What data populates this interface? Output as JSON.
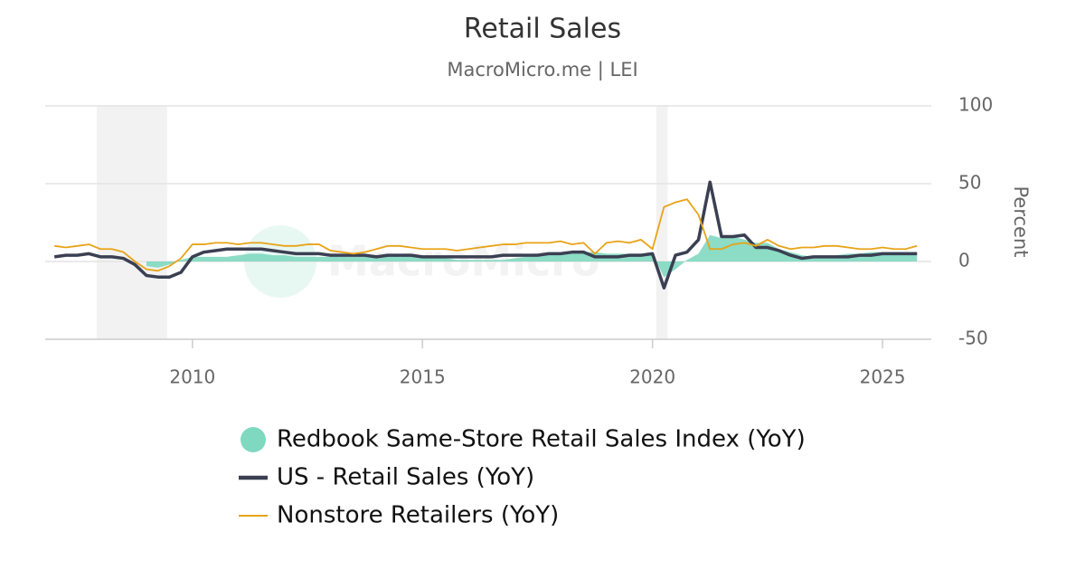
{
  "chart_data": {
    "type": "line",
    "title": "Retail Sales",
    "subtitle": "MacroMicro.me | LEI",
    "watermark": "MacroMicro",
    "y_label": "Percent",
    "xlim": [
      2006.8,
      2026.06
    ],
    "xticks": [
      2010,
      2015,
      2020,
      2025
    ],
    "ylim": [
      -50,
      100
    ],
    "yticks": [
      -50,
      0,
      50,
      100
    ],
    "grid": true,
    "shaded_periods": [
      [
        2007.92,
        2009.45
      ],
      [
        2020.08,
        2020.33
      ]
    ],
    "x": [
      2007,
      2007.25,
      2007.5,
      2007.75,
      2008,
      2008.25,
      2008.5,
      2008.75,
      2009,
      2009.25,
      2009.5,
      2009.75,
      2010,
      2010.25,
      2010.5,
      2010.75,
      2011,
      2011.25,
      2011.5,
      2011.75,
      2012,
      2012.25,
      2012.5,
      2012.75,
      2013,
      2013.25,
      2013.5,
      2013.75,
      2014,
      2014.25,
      2014.5,
      2014.75,
      2015,
      2015.25,
      2015.5,
      2015.75,
      2016,
      2016.25,
      2016.5,
      2016.75,
      2017,
      2017.25,
      2017.5,
      2017.75,
      2018,
      2018.25,
      2018.5,
      2018.75,
      2019,
      2019.25,
      2019.5,
      2019.75,
      2020,
      2020.25,
      2020.5,
      2020.75,
      2021,
      2021.25,
      2021.5,
      2021.75,
      2022,
      2022.25,
      2022.5,
      2022.75,
      2023,
      2023.25,
      2023.5,
      2023.75,
      2024,
      2024.25,
      2024.5,
      2024.75,
      2025,
      2025.25,
      2025.5,
      2025.75
    ],
    "series": [
      {
        "name": "Redbook Same-Store Retail Sales Index (YoY)",
        "color": "#7fd8c0",
        "style": "area",
        "values": [
          null,
          null,
          null,
          null,
          null,
          null,
          null,
          null,
          -3,
          -4,
          -2,
          1,
          3,
          3,
          3,
          3,
          4,
          5,
          5,
          4,
          4,
          3,
          3,
          3,
          3,
          3,
          3,
          3,
          3,
          4,
          4,
          4,
          3,
          2,
          2,
          1,
          1,
          1,
          1,
          1,
          2,
          3,
          3,
          4,
          5,
          5,
          6,
          6,
          5,
          5,
          5,
          5,
          5,
          -10,
          -5,
          1,
          5,
          17,
          15,
          16,
          14,
          12,
          12,
          8,
          6,
          4,
          3,
          3,
          4,
          5,
          5,
          6,
          6,
          6,
          6,
          6
        ]
      },
      {
        "name": "US - Retail Sales (YoY)",
        "color": "#3b3f52",
        "style": "thick",
        "values": [
          3,
          4,
          4,
          5,
          3,
          3,
          2,
          -2,
          -9,
          -10,
          -10,
          -7,
          3,
          6,
          7,
          8,
          8,
          8,
          8,
          7,
          6,
          5,
          5,
          5,
          4,
          4,
          4,
          4,
          3,
          4,
          4,
          4,
          3,
          3,
          3,
          3,
          3,
          3,
          3,
          4,
          4,
          4,
          4,
          5,
          5,
          6,
          6,
          3,
          3,
          3,
          4,
          4,
          5,
          -17,
          4,
          6,
          14,
          51,
          16,
          16,
          17,
          9,
          9,
          7,
          4,
          2,
          3,
          3,
          3,
          3,
          4,
          4,
          5,
          5,
          5,
          5
        ]
      },
      {
        "name": "Nonstore Retailers (YoY)",
        "color": "#e8a317",
        "style": "thin",
        "values": [
          10,
          9,
          10,
          11,
          8,
          8,
          6,
          0,
          -5,
          -6,
          -3,
          2,
          11,
          11,
          12,
          12,
          11,
          12,
          12,
          11,
          10,
          10,
          11,
          11,
          7,
          6,
          5,
          6,
          8,
          10,
          10,
          9,
          8,
          8,
          8,
          7,
          8,
          9,
          10,
          11,
          11,
          12,
          12,
          12,
          13,
          11,
          12,
          5,
          12,
          13,
          12,
          14,
          8,
          35,
          38,
          40,
          30,
          8,
          8,
          11,
          12,
          10,
          14,
          10,
          8,
          9,
          9,
          10,
          10,
          9,
          8,
          8,
          9,
          8,
          8,
          10
        ]
      }
    ]
  }
}
